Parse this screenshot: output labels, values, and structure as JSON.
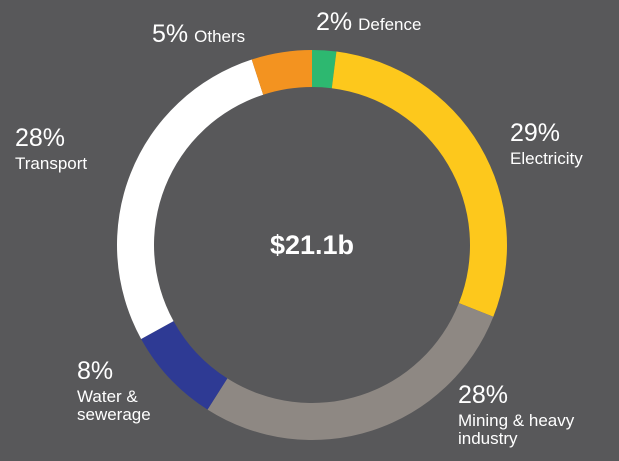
{
  "chart_data": {
    "type": "donut",
    "center_label": "$21.1b",
    "categories": [
      "Defence",
      "Electricity",
      "Mining & heavy industry",
      "Water & sewerage",
      "Transport",
      "Others"
    ],
    "values": [
      2,
      29,
      28,
      8,
      28,
      5
    ],
    "value_labels": [
      "2%",
      "29%",
      "28%",
      "8%",
      "28%",
      "5%"
    ],
    "colors": [
      "#2db870",
      "#fdc81c",
      "#8e8883",
      "#2e3a94",
      "#ffffff",
      "#f39320"
    ]
  }
}
